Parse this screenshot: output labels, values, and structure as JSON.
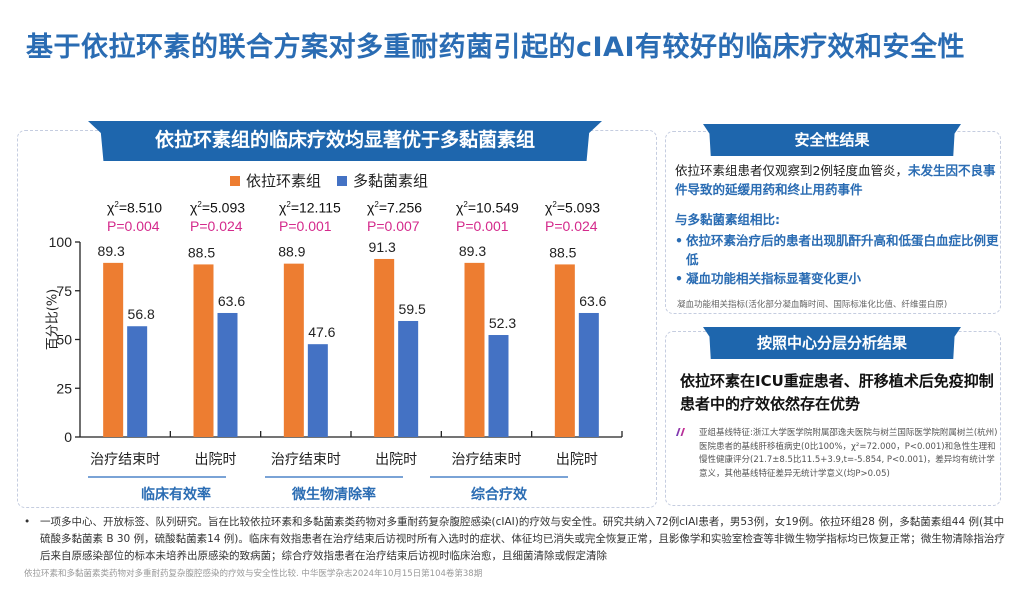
{
  "title": "基于依拉环素的联合方案对多重耐药菌引起的cIAI有较好的临床疗效和安全性",
  "left_panel": {
    "banner": "依拉环素组的临床疗效均显著优于多黏菌素组",
    "stats": [
      {
        "chi_prefix": "χ",
        "chi_sup": "2",
        "chi_value": "=8.510",
        "p": "P=0.004"
      },
      {
        "chi_prefix": "χ",
        "chi_sup": "2",
        "chi_value": "=5.093",
        "p": "P=0.024"
      },
      {
        "chi_prefix": "χ",
        "chi_sup": "2",
        "chi_value": "=12.115",
        "p": "P=0.001"
      },
      {
        "chi_prefix": "χ",
        "chi_sup": "2",
        "chi_value": "=7.256",
        "p": "P=0.007"
      },
      {
        "chi_prefix": "χ",
        "chi_sup": "2",
        "chi_value": "=10.549",
        "p": "P=0.001"
      },
      {
        "chi_prefix": "χ",
        "chi_sup": "2",
        "chi_value": "=5.093",
        "p": "P=0.024"
      }
    ],
    "groups": [
      "临床有效率",
      "微生物清除率",
      "综合疗效"
    ]
  },
  "chart_data": {
    "type": "bar",
    "title": "",
    "xlabel": "",
    "ylabel": "百分比(%)",
    "ylim": [
      0,
      100
    ],
    "yticks": [
      "0",
      "25",
      "50",
      "75",
      "100"
    ],
    "categories": [
      "治疗结束时",
      "出院时",
      "治疗结束时",
      "出院时",
      "治疗结束时",
      "出院时"
    ],
    "category_groups": [
      "临床有效率",
      "临床有效率",
      "微生物清除率",
      "微生物清除率",
      "综合疗效",
      "综合疗效"
    ],
    "legend_position": "top",
    "series": [
      {
        "name": "依拉环素组",
        "color": "#ed7d31",
        "values": [
          89.3,
          88.5,
          88.9,
          91.3,
          89.3,
          88.5
        ],
        "labels": [
          "89.3",
          "88.5",
          "88.9",
          "91.3",
          "89.3",
          "88.5"
        ]
      },
      {
        "name": "多黏菌素组",
        "color": "#4472c4",
        "values": [
          56.8,
          63.6,
          47.6,
          59.5,
          52.3,
          63.6
        ],
        "labels": [
          "56.8",
          "63.6",
          "47.6",
          "59.5",
          "52.3",
          "63.6"
        ]
      }
    ]
  },
  "safety": {
    "banner": "安全性结果",
    "line1_plain": "依拉环素组患者仅观察到2例轻度血管炎，",
    "line1_bold": "未发生因不良事件导致的延缓用药和终止用药事件",
    "compare_head": "与多黏菌素组相比:",
    "bullets": [
      "依拉环素治疗后的患者出现肌酐升高和低蛋白血症比例更低",
      "凝血功能相关指标显著变化更小"
    ],
    "footnote": "凝血功能相关指标(活化部分凝血酶时间、国际标准化比值、纤维蛋白原)"
  },
  "subgroup": {
    "banner": "按照中心分层分析结果",
    "headline": "依拉环素在ICU重症患者、肝移植术后免疫抑制患者中的疗效依然存在优势",
    "note": "亚组基线特征:浙江大学医学院附属邵逸夫医院与树兰国际医学院附属树兰(杭州)医院患者的基线肝移植病史(0比100%，χ²=72.000，P<0.001)和急性生理和慢性健康评分(21.7±8.5比11.5+3.9,t=-5.854, P<0.001)，差异均有统计学意义，其他基线特征差异无统计学意义(均P>0.05)"
  },
  "bottom": {
    "bullet": "•",
    "text": "一项多中心、开放标签、队列研究。旨在比较依拉环素和多黏菌素类药物对多重耐药复杂腹腔感染(cIAI)的疗效与安全性。研究共纳入72例cIAI患者，男53例，女19例。依拉环组28 例，多黏菌素组44 例(其中硫酸多黏菌素 B 30 例，硫酸黏菌素14 例)。临床有效指患者在治疗结束后访视时所有入选时的症状、体征均已消失或完全恢复正常，且影像学和实验室检查等非微生物学指标均已恢复正常；微生物清除指治疗后来自原感染部位的标本未培养出原感染的致病菌；综合疗效指患者在治疗结束后访视时临床治愈，且细菌清除或假定清除",
    "citation": "依拉环素和多黏菌素类药物对多重耐药复杂腹腔感染的疗效与安全性比较. 中华医学杂志2024年10月15日第104卷第38期"
  }
}
